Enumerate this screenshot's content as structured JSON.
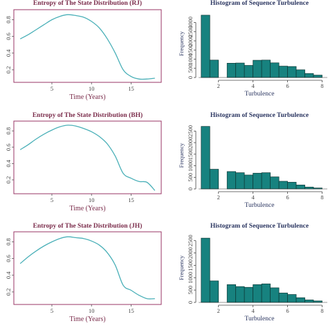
{
  "figure": {
    "line_color": "#4ab0b8",
    "frame_color": "#9a3566",
    "bar_color": "#17827f",
    "bar_edge": "#0d3836"
  },
  "chart_data": [
    {
      "type": "line",
      "title": "Entropy of The State Distribution (RJ)",
      "xlabel": "Time (Years)",
      "ylabel": "",
      "x": [
        1,
        2,
        3,
        4,
        5,
        6,
        7,
        8,
        9,
        10,
        11,
        12,
        13,
        14,
        15,
        16,
        17,
        18
      ],
      "y": [
        0.57,
        0.62,
        0.68,
        0.74,
        0.8,
        0.84,
        0.86,
        0.85,
        0.83,
        0.78,
        0.7,
        0.57,
        0.4,
        0.2,
        0.12,
        0.09,
        0.09,
        0.1
      ],
      "xlim": [
        0.2,
        18.8
      ],
      "ylim": [
        0.05,
        0.92
      ],
      "xticks": [
        5,
        10,
        15
      ],
      "yticks": [
        0.2,
        0.4,
        0.6,
        0.8
      ],
      "xtick_labels": [
        "5",
        "10",
        "15"
      ],
      "ytick_labels": [
        "0.2",
        "0.4",
        "0.6",
        "0.8"
      ]
    },
    {
      "type": "bar",
      "title": "Histogram of Sequence Turbulence",
      "xlabel": "Turbulence",
      "ylabel": "Frequency",
      "bin_edges": [
        1,
        1.5,
        2,
        2.5,
        3,
        3.5,
        4,
        4.5,
        5,
        5.5,
        6,
        6.5,
        7,
        7.5,
        8
      ],
      "values": [
        3400,
        950,
        0,
        780,
        790,
        660,
        940,
        950,
        800,
        620,
        600,
        420,
        220,
        130
      ],
      "xlim": [
        0.85,
        8.3
      ],
      "ylim": [
        0,
        3700
      ],
      "xticks": [
        2,
        4,
        6,
        8
      ],
      "yticks": [
        0,
        500,
        1000,
        1500,
        2000,
        2500,
        3000
      ],
      "xtick_labels": [
        "2",
        "4",
        "6",
        "8"
      ],
      "ytick_labels": [
        "0",
        "500",
        "1000",
        "1500",
        "2000",
        "2500",
        "3000"
      ]
    },
    {
      "type": "line",
      "title": "Entropy of The State Distribution (BH)",
      "xlabel": "Time (Years)",
      "ylabel": "",
      "x": [
        1,
        2,
        3,
        4,
        5,
        6,
        7,
        8,
        9,
        10,
        11,
        12,
        13,
        14,
        15,
        16,
        17,
        18
      ],
      "y": [
        0.57,
        0.63,
        0.7,
        0.76,
        0.81,
        0.85,
        0.87,
        0.86,
        0.83,
        0.79,
        0.73,
        0.64,
        0.49,
        0.28,
        0.22,
        0.18,
        0.17,
        0.07
      ],
      "xlim": [
        0.2,
        18.8
      ],
      "ylim": [
        0.03,
        0.92
      ],
      "xticks": [
        5,
        10,
        15
      ],
      "yticks": [
        0.2,
        0.4,
        0.6,
        0.8
      ],
      "xtick_labels": [
        "5",
        "10",
        "15"
      ],
      "ytick_labels": [
        "0.2",
        "0.4",
        "0.6",
        "0.8"
      ]
    },
    {
      "type": "bar",
      "title": "Histogram of Sequence Turbulence",
      "xlabel": "Turbulence",
      "ylabel": "Frequency",
      "bin_edges": [
        1,
        1.5,
        2,
        2.5,
        3,
        3.5,
        4,
        4.5,
        5,
        5.5,
        6,
        6.5,
        7,
        7.5,
        8
      ],
      "values": [
        2700,
        850,
        0,
        750,
        700,
        600,
        680,
        700,
        520,
        330,
        290,
        170,
        80,
        40
      ],
      "xlim": [
        0.85,
        8.3
      ],
      "ylim": [
        0,
        2900
      ],
      "xticks": [
        2,
        4,
        6,
        8
      ],
      "yticks": [
        0,
        500,
        1000,
        1500,
        2000,
        2500
      ],
      "xtick_labels": [
        "2",
        "4",
        "6",
        "8"
      ],
      "ytick_labels": [
        "0",
        "500",
        "1000",
        "1500",
        "2000",
        "2500"
      ]
    },
    {
      "type": "line",
      "title": "Entropy of The State Distribution (JH)",
      "xlabel": "Time (Years)",
      "ylabel": "",
      "x": [
        1,
        2,
        3,
        4,
        5,
        6,
        7,
        8,
        9,
        10,
        11,
        12,
        13,
        14,
        15,
        16,
        17,
        18
      ],
      "y": [
        0.54,
        0.62,
        0.69,
        0.75,
        0.8,
        0.84,
        0.86,
        0.85,
        0.84,
        0.81,
        0.76,
        0.67,
        0.52,
        0.28,
        0.22,
        0.16,
        0.12,
        0.12
      ],
      "xlim": [
        0.2,
        18.8
      ],
      "ylim": [
        0.05,
        0.92
      ],
      "xticks": [
        5,
        10,
        15
      ],
      "yticks": [
        0.2,
        0.4,
        0.6,
        0.8
      ],
      "xtick_labels": [
        "5",
        "10",
        "15"
      ],
      "ytick_labels": [
        "0.2",
        "0.4",
        "0.6",
        "0.8"
      ]
    },
    {
      "type": "bar",
      "title": "Histogram of Sequence Turbulence",
      "xlabel": "Turbulence",
      "ylabel": "Frequency",
      "bin_edges": [
        1,
        1.5,
        2,
        2.5,
        3,
        3.5,
        4,
        4.5,
        5,
        5.5,
        6,
        6.5,
        7,
        7.5,
        8
      ],
      "values": [
        2600,
        870,
        0,
        720,
        640,
        610,
        720,
        750,
        590,
        380,
        320,
        190,
        100,
        60
      ],
      "xlim": [
        0.85,
        8.3
      ],
      "ylim": [
        0,
        2800
      ],
      "xticks": [
        2,
        4,
        6,
        8
      ],
      "yticks": [
        0,
        500,
        1000,
        1500,
        2000,
        2500
      ],
      "xtick_labels": [
        "2",
        "4",
        "6",
        "8"
      ],
      "ytick_labels": [
        "0",
        "500",
        "1000",
        "1500",
        "2000",
        "2500"
      ]
    }
  ]
}
